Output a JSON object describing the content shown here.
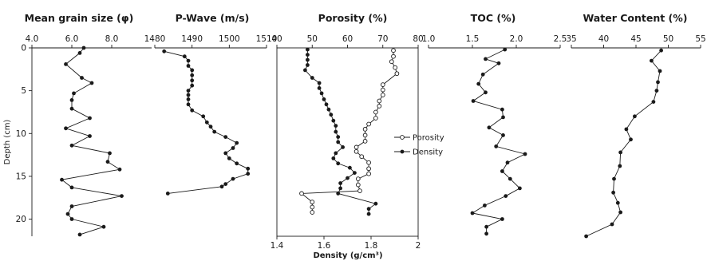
{
  "chart_data": [
    {
      "type": "line",
      "title": "Mean grain size (φ)",
      "xlim": [
        4.0,
        10.0
      ],
      "x_ticks": [
        "4.0",
        "6.0",
        "8.0"
      ],
      "ylabel": "Depth (cm)",
      "ylim": [
        0,
        22
      ],
      "y_ticks": [
        "0",
        "5",
        "10",
        "15",
        "20"
      ],
      "series": [
        {
          "marker": "filled-circle",
          "points": [
            [
              6.6,
              0
            ],
            [
              6.4,
              0.6
            ],
            [
              5.7,
              1.9
            ],
            [
              6.5,
              3.5
            ],
            [
              7.0,
              4.1
            ],
            [
              6.1,
              5.3
            ],
            [
              6.0,
              6.1
            ],
            [
              6.0,
              7.1
            ],
            [
              6.9,
              8.2
            ],
            [
              5.7,
              9.4
            ],
            [
              6.9,
              10.3
            ],
            [
              6.0,
              11.4
            ],
            [
              7.9,
              12.3
            ],
            [
              7.8,
              13.3
            ],
            [
              8.4,
              14.2
            ],
            [
              5.5,
              15.4
            ],
            [
              6.0,
              16.3
            ],
            [
              8.5,
              17.3
            ],
            [
              6.0,
              18.5
            ],
            [
              5.8,
              19.4
            ],
            [
              6.0,
              20.0
            ],
            [
              7.6,
              20.9
            ],
            [
              6.4,
              21.8
            ]
          ]
        }
      ]
    },
    {
      "type": "line",
      "title": "P-Wave (m/s)",
      "xlim": [
        1480,
        1510
      ],
      "x_ticks": [
        "1480",
        "1490",
        "1500",
        "1510"
      ],
      "ylim": [
        0,
        22
      ],
      "series": [
        {
          "marker": "filled-circle",
          "points": [
            [
              1482.5,
              0.4
            ],
            [
              1488,
              1.0
            ],
            [
              1489,
              1.5
            ],
            [
              1489,
              2.1
            ],
            [
              1490,
              2.6
            ],
            [
              1490,
              3.2
            ],
            [
              1490,
              3.8
            ],
            [
              1490,
              4.4
            ],
            [
              1489,
              5.0
            ],
            [
              1489,
              5.5
            ],
            [
              1489,
              6.0
            ],
            [
              1489,
              6.6
            ],
            [
              1490,
              7.3
            ],
            [
              1493,
              8.0
            ],
            [
              1494,
              8.7
            ],
            [
              1495,
              9.2
            ],
            [
              1496,
              9.8
            ],
            [
              1499,
              10.4
            ],
            [
              1502,
              11.1
            ],
            [
              1501,
              11.7
            ],
            [
              1499,
              12.3
            ],
            [
              1500,
              12.9
            ],
            [
              1502,
              13.5
            ],
            [
              1505,
              14.1
            ],
            [
              1505,
              14.7
            ],
            [
              1501,
              15.3
            ],
            [
              1499,
              15.9
            ],
            [
              1498,
              16.2
            ],
            [
              1483.5,
              17.0
            ]
          ]
        }
      ]
    },
    {
      "type": "line",
      "title": "Porosity (%)",
      "xlim": [
        40,
        80
      ],
      "x_ticks": [
        "40",
        "50",
        "60",
        "70",
        "80"
      ],
      "x2label": "Density (g/cm³)",
      "x2lim": [
        1.4,
        2.0
      ],
      "x2_ticks": [
        "1.4",
        "1.6",
        "1.8",
        "2"
      ],
      "ylim": [
        0,
        22
      ],
      "legend": "right",
      "series": [
        {
          "name": "Porosity",
          "marker": "open-circle",
          "axis": "top",
          "points": [
            [
              73,
              0.3
            ],
            [
              73,
              1.0
            ],
            [
              72.5,
              1.6
            ],
            [
              73.5,
              2.3
            ],
            [
              74,
              3.0
            ],
            [
              70,
              4.3
            ],
            [
              70,
              4.9
            ],
            [
              70,
              5.5
            ],
            [
              69,
              6.2
            ],
            [
              69,
              6.8
            ],
            [
              68,
              7.5
            ],
            [
              68,
              8.2
            ],
            [
              66,
              8.9
            ],
            [
              65,
              9.5
            ],
            [
              65,
              10.2
            ],
            [
              65,
              10.9
            ],
            [
              62.5,
              11.6
            ],
            [
              62.5,
              12.1
            ],
            [
              64,
              12.7
            ],
            [
              66,
              13.4
            ],
            [
              66,
              14.1
            ],
            [
              66,
              14.7
            ],
            [
              63,
              15.3
            ],
            [
              63,
              16.0
            ],
            [
              63.5,
              16.7
            ],
            [
              47,
              17.0
            ],
            [
              50,
              18.0
            ],
            [
              50,
              18.6
            ],
            [
              50,
              19.2
            ]
          ]
        },
        {
          "name": "Density",
          "marker": "filled-circle",
          "axis": "bottom",
          "points": [
            [
              1.53,
              0.2
            ],
            [
              1.53,
              0.8
            ],
            [
              1.53,
              1.4
            ],
            [
              1.53,
              2.0
            ],
            [
              1.52,
              2.6
            ],
            [
              1.55,
              3.5
            ],
            [
              1.58,
              4.1
            ],
            [
              1.58,
              4.7
            ],
            [
              1.59,
              5.3
            ],
            [
              1.6,
              6.0
            ],
            [
              1.61,
              6.6
            ],
            [
              1.62,
              7.2
            ],
            [
              1.63,
              7.8
            ],
            [
              1.64,
              8.5
            ],
            [
              1.65,
              9.1
            ],
            [
              1.65,
              9.8
            ],
            [
              1.66,
              10.4
            ],
            [
              1.66,
              11.0
            ],
            [
              1.68,
              11.6
            ],
            [
              1.65,
              12.3
            ],
            [
              1.64,
              12.9
            ],
            [
              1.66,
              13.5
            ],
            [
              1.71,
              14.0
            ],
            [
              1.73,
              14.6
            ],
            [
              1.7,
              15.2
            ],
            [
              1.67,
              15.8
            ],
            [
              1.67,
              16.4
            ],
            [
              1.66,
              17.0
            ],
            [
              1.82,
              18.2
            ],
            [
              1.79,
              18.8
            ],
            [
              1.79,
              19.4
            ]
          ]
        }
      ]
    },
    {
      "type": "line",
      "title": "TOC (%)",
      "xlim": [
        1.0,
        2.5
      ],
      "x_ticks": [
        "1.0",
        "1.5",
        "2.0",
        "2.5"
      ],
      "ylim": [
        0,
        22
      ],
      "series": [
        {
          "marker": "filled-circle",
          "points": [
            [
              1.87,
              0.2
            ],
            [
              1.65,
              1.3
            ],
            [
              1.8,
              1.8
            ],
            [
              1.62,
              3.1
            ],
            [
              1.57,
              4.2
            ],
            [
              1.65,
              5.2
            ],
            [
              1.51,
              6.2
            ],
            [
              1.84,
              7.2
            ],
            [
              1.85,
              8.1
            ],
            [
              1.69,
              9.3
            ],
            [
              1.85,
              10.2
            ],
            [
              1.77,
              11.5
            ],
            [
              2.1,
              12.4
            ],
            [
              1.9,
              13.4
            ],
            [
              1.84,
              14.4
            ],
            [
              1.93,
              15.3
            ],
            [
              2.04,
              16.4
            ],
            [
              1.88,
              17.3
            ],
            [
              1.64,
              18.4
            ],
            [
              1.5,
              19.3
            ],
            [
              1.84,
              20.0
            ],
            [
              1.66,
              20.9
            ],
            [
              1.66,
              21.7
            ]
          ]
        }
      ]
    },
    {
      "type": "line",
      "title": "Water Content (%)",
      "xlim": [
        35,
        55
      ],
      "x_ticks": [
        "35",
        "40",
        "45",
        "50",
        "55"
      ],
      "ylim": [
        0,
        22
      ],
      "series": [
        {
          "marker": "filled-circle",
          "points": [
            [
              48.9,
              0.3
            ],
            [
              47.4,
              1.5
            ],
            [
              48.7,
              2.7
            ],
            [
              48.4,
              4.0
            ],
            [
              48.2,
              5.0
            ],
            [
              47.7,
              6.3
            ],
            [
              44.8,
              8.0
            ],
            [
              43.5,
              9.5
            ],
            [
              44.2,
              10.7
            ],
            [
              42.6,
              12.2
            ],
            [
              42.5,
              13.8
            ],
            [
              41.6,
              15.3
            ],
            [
              41.5,
              16.9
            ],
            [
              42.2,
              18.1
            ],
            [
              42.6,
              19.2
            ],
            [
              41.3,
              20.6
            ],
            [
              37.3,
              22.0
            ]
          ]
        }
      ]
    }
  ]
}
